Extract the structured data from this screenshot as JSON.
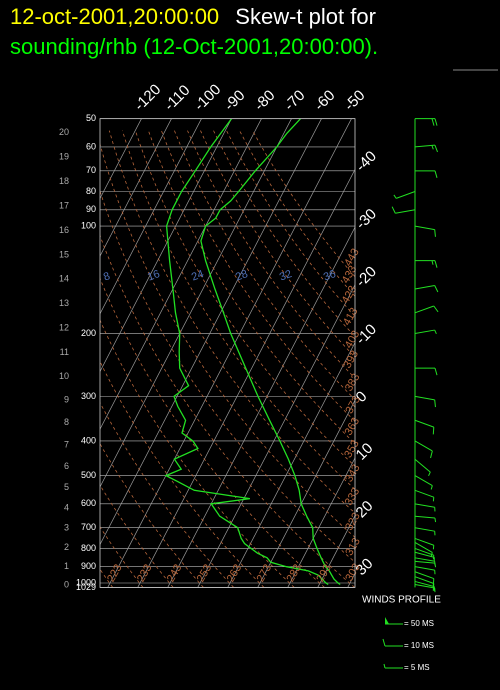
{
  "chart_data": {
    "type": "skewt",
    "title": "12-oct-2001,20:00:00",
    "title_color": "#ffff00",
    "title_suffix": "Skew-t plot for",
    "title_suffix_color": "#ffffff",
    "subtitle": "sounding/rhb (12-Oct-2001,20:00:00).",
    "subtitle_color": "#00ff00",
    "y_scale": "log",
    "ylim": [
      1029,
      50
    ],
    "yticks": [
      50,
      60,
      70,
      80,
      90,
      100,
      200,
      300,
      400,
      500,
      600,
      700,
      800,
      900,
      1000,
      1029
    ],
    "height_ticks": [
      0,
      1,
      2,
      3,
      4,
      5,
      6,
      7,
      8,
      9,
      10,
      11,
      12,
      13,
      14,
      15,
      16,
      17,
      18,
      19,
      20
    ],
    "xlim": [
      -120,
      30
    ],
    "xticks": [
      -120,
      -110,
      -100,
      -90,
      -80,
      -70,
      -60,
      -50,
      -40,
      -30,
      -20,
      -10,
      0,
      10,
      20,
      30
    ],
    "isotherm_color": "#9a9a9a",
    "dry_adiabats": [
      223,
      233,
      243,
      253,
      263,
      273,
      283,
      293,
      303,
      313,
      323,
      333,
      343,
      353,
      363,
      373,
      383,
      393,
      403,
      413,
      423,
      433,
      443
    ],
    "adiabat_color": "#b5653a",
    "mixing_ratio_labels": [
      8,
      16,
      24,
      28,
      32,
      36
    ],
    "mixing_ratio_color": "#4f6fb5",
    "series": [
      {
        "color": "#22e022",
        "pressure": [
          1010,
          1000,
          975,
          950,
          925,
          900,
          875,
          850,
          800,
          750,
          700,
          650,
          600,
          550,
          500,
          450,
          400,
          350,
          300,
          250,
          200,
          175,
          150,
          125,
          110,
          100,
          95,
          90,
          85,
          80,
          70,
          60,
          55,
          50
        ],
        "values": [
          27,
          26,
          24,
          22.5,
          21,
          19,
          17.5,
          16,
          13,
          10,
          8,
          4,
          0,
          -3,
          -7,
          -12,
          -18,
          -25,
          -33,
          -42,
          -53,
          -59,
          -66,
          -74,
          -79,
          -80,
          -78,
          -78,
          -76,
          -75,
          -73,
          -70,
          -69,
          -67
        ]
      },
      {
        "color": "#22e022",
        "pressure": [
          1010,
          1000,
          975,
          950,
          925,
          900,
          875,
          850,
          825,
          800,
          775,
          750,
          700,
          650,
          600,
          580,
          550,
          520,
          500,
          480,
          450,
          420,
          400,
          380,
          350,
          320,
          300,
          280,
          250,
          225,
          200,
          175,
          150,
          125,
          100,
          90,
          80,
          70,
          60,
          50
        ],
        "values": [
          23,
          22,
          20,
          18,
          14,
          6,
          0,
          -2,
          -6,
          -9,
          -12,
          -14,
          -17,
          -25,
          -30,
          -18,
          -38,
          -45,
          -50,
          -46,
          -50,
          -44,
          -47,
          -52,
          -53,
          -58,
          -61,
          -58,
          -64,
          -67,
          -70,
          -75,
          -80,
          -86,
          -93,
          -94,
          -94,
          -93,
          -92,
          -90
        ]
      }
    ],
    "winds": {
      "title": "WINDS PROFILE",
      "color": "#22e022",
      "pressure": [
        1010,
        990,
        960,
        930,
        900,
        870,
        850,
        820,
        800,
        770,
        750,
        700,
        650,
        600,
        550,
        500,
        450,
        400,
        350,
        300,
        250,
        200,
        175,
        150,
        125,
        100,
        90,
        80,
        70,
        60,
        50
      ],
      "speed": [
        8,
        9,
        10,
        10,
        9,
        8,
        7,
        6,
        6,
        5,
        5,
        6,
        7,
        8,
        8,
        9,
        8,
        10,
        12,
        12,
        10,
        8,
        10,
        12,
        15,
        14,
        10,
        8,
        12,
        18,
        22
      ],
      "direction": [
        100,
        105,
        110,
        110,
        100,
        95,
        100,
        105,
        110,
        120,
        110,
        100,
        95,
        100,
        110,
        120,
        130,
        120,
        110,
        100,
        90,
        80,
        70,
        80,
        90,
        100,
        260,
        250,
        90,
        85,
        90
      ],
      "legend": [
        {
          "speed": 50,
          "label": "= 50 MS"
        },
        {
          "speed": 10,
          "label": "= 10 MS"
        },
        {
          "speed": 5,
          "label": "= 5 MS"
        }
      ]
    }
  }
}
